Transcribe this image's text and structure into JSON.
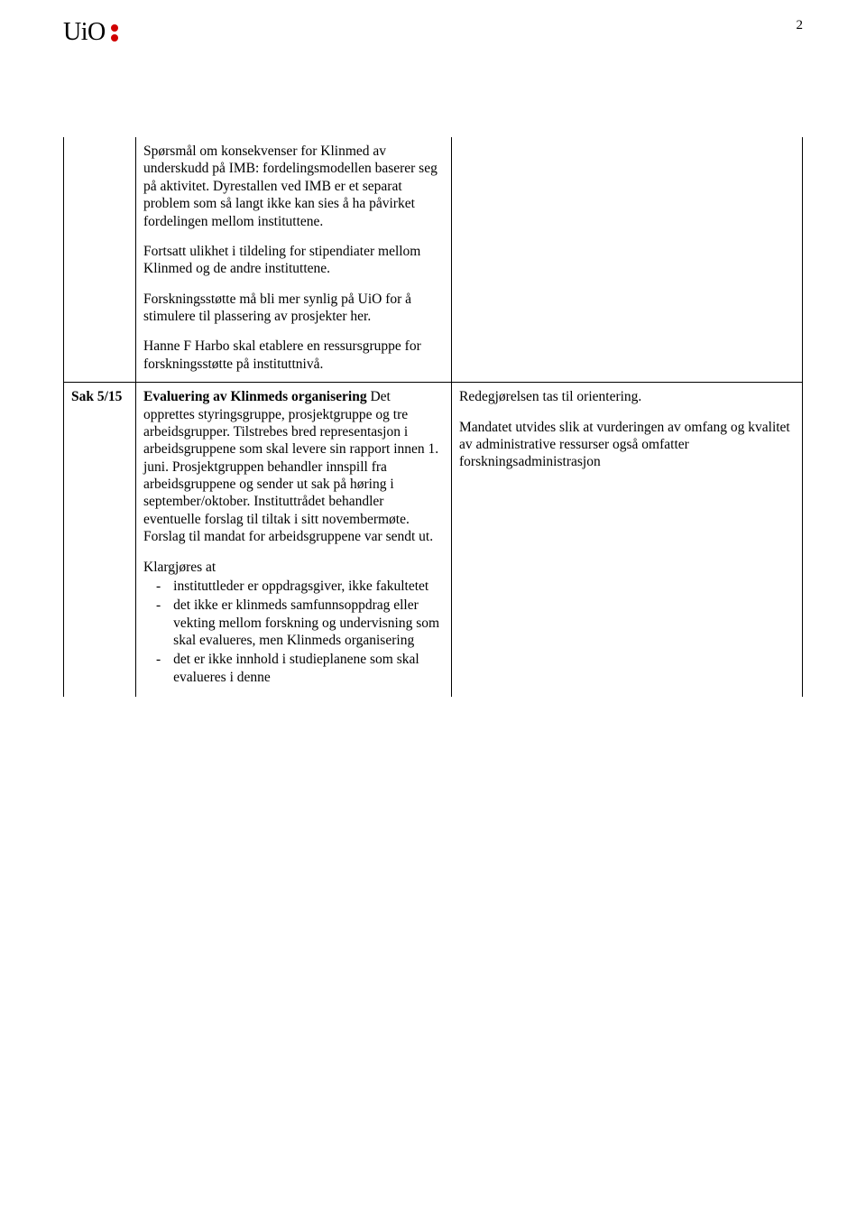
{
  "page_number": "2",
  "logo_text": "UiO",
  "row1": {
    "paragraphs": [
      "Spørsmål om konsekvenser for Klinmed av underskudd på IMB: fordelingsmodellen baserer seg på aktivitet. Dyrestallen ved IMB er et separat problem som så langt ikke kan sies å ha påvirket fordelingen mellom instituttene.",
      "Fortsatt ulikhet i tildeling for stipendiater mellom Klinmed og de andre instituttene.",
      "Forskningsstøtte må bli mer synlig på UiO for å stimulere til plassering av prosjekter her.",
      "Hanne F Harbo skal etablere en ressursgruppe for forskningsstøtte på instituttnivå."
    ]
  },
  "row2": {
    "label": "Sak 5/15",
    "middle": {
      "lead_bold": "Evaluering av Klinmeds organisering",
      "lead_rest": " Det opprettes styringsgruppe, prosjektgruppe og tre arbeidsgrupper. Tilstrebes bred representasjon i arbeidsgruppene som skal levere sin rapport innen 1. juni. Prosjektgruppen behandler innspill fra arbeidsgruppene og sender ut sak på høring i september/oktober. Instituttrådet behandler eventuelle forslag til tiltak i sitt novembermøte. Forslag til mandat for arbeidsgruppene var sendt ut.",
      "list_intro": "Klargjøres at",
      "items": [
        "instituttleder er oppdragsgiver, ikke fakultetet",
        "det ikke er klinmeds samfunnsoppdrag eller vekting mellom forskning og undervisning som skal evalueres, men Klinmeds organisering",
        "det er ikke innhold i studieplanene som skal evalueres i denne"
      ]
    },
    "right": {
      "p1": "Redegjørelsen tas til orientering.",
      "p2": "Mandatet utvides slik at vurderingen av omfang og kvalitet av administrative ressurser også omfatter forskningsadministrasjon"
    }
  },
  "dash": "-"
}
